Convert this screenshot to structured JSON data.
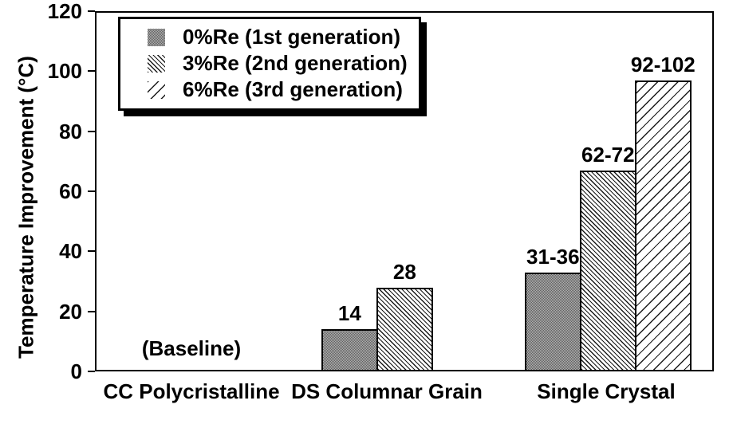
{
  "chart_data": {
    "type": "bar",
    "title": "",
    "ylabel": "Temperature Improvement (°C)",
    "xlabel": "",
    "ylim": [
      0,
      120
    ],
    "yticks": [
      0,
      20,
      40,
      60,
      80,
      100,
      120
    ],
    "grid": false,
    "legend_position": "upper-left",
    "categories": [
      "CC Polycristalline",
      "DS Columnar Grain",
      "Single Crystal"
    ],
    "series": [
      {
        "name": "0%Re (1st generation)",
        "pattern": "gray-checker",
        "values": [
          null,
          14,
          33
        ],
        "bar_labels": [
          null,
          "14",
          "31-36"
        ]
      },
      {
        "name": "3%Re (2nd generation)",
        "pattern": "dense-backslash-hatch",
        "values": [
          null,
          28,
          67
        ],
        "bar_labels": [
          null,
          "28",
          "62-72"
        ]
      },
      {
        "name": "6%Re (3rd generation)",
        "pattern": "sparse-forwardslash-hatch",
        "values": [
          null,
          null,
          97
        ],
        "bar_labels": [
          null,
          null,
          "92-102"
        ]
      }
    ],
    "annotations": [
      {
        "text": "(Baseline)",
        "category": "CC Polycristalline"
      }
    ],
    "colors": {
      "foreground": "#000000",
      "background": "#ffffff",
      "checker_dark": "#5e5e5e",
      "checker_light": "#b4b4b4",
      "hatch_line": "#1a1a1a"
    }
  }
}
